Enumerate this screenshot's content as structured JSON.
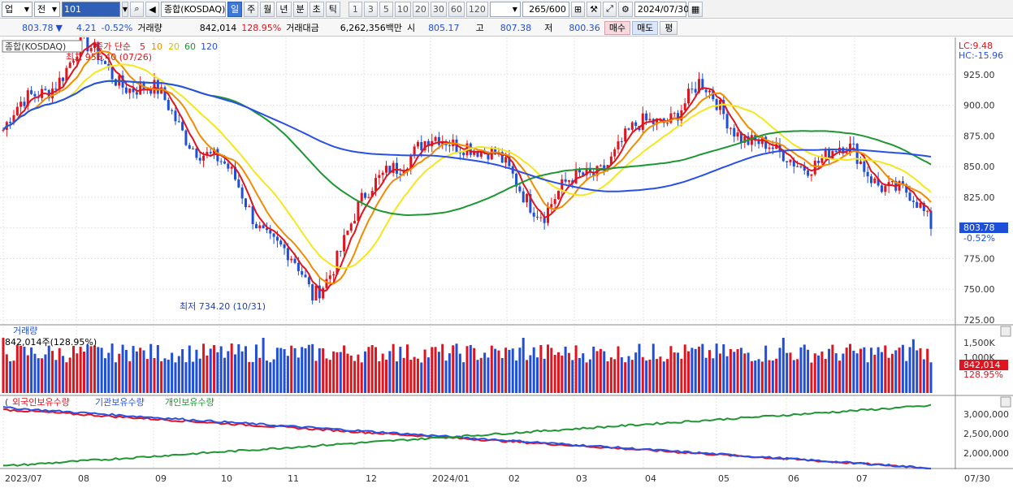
{
  "toolbar": {
    "market": "업",
    "prev": "전",
    "code": "101",
    "name": "종합(KOSDAQ)",
    "periods": [
      "일",
      "주",
      "월",
      "년",
      "분",
      "초",
      "틱"
    ],
    "active_period": "일",
    "intervals": [
      "1",
      "3",
      "5",
      "10",
      "20",
      "30",
      "60",
      "120"
    ],
    "count": "265/600",
    "date": "2024/07/30"
  },
  "quote": {
    "price": "803.78",
    "change": "4.21",
    "rate": "-0.52%",
    "volume_label": "거래량",
    "volume": "842,014",
    "volume_rate": "128.95%",
    "amount_label": "거래대금",
    "amount": "6,262,356백만",
    "open_label": "시",
    "open": "805.17",
    "high_label": "고",
    "high": "807.38",
    "low_label": "저",
    "low": "800.36",
    "sell_label": "매수",
    "buy_label": "매도",
    "eval_label": "평"
  },
  "main_chart": {
    "title": "종합(KOSDAQ)",
    "ma_label": "종가 단순",
    "ma_periods": [
      "5",
      "10",
      "20",
      "60",
      "120"
    ],
    "ma_colors": [
      "#e0141e",
      "#f08c00",
      "#f5e61e",
      "#1e9632",
      "#2850e6"
    ],
    "lc": "LC:9.48",
    "hc": "HC:-15.96",
    "high_note": "최고 956.40 (07/26)",
    "low_note": "최저 734.20 (10/31)",
    "y_ticks": [
      "925.00",
      "900.00",
      "875.00",
      "850.00",
      "825.00",
      "800.00",
      "775.00",
      "750.00",
      "725.00"
    ],
    "last_price": "803.78",
    "last_rate": "-0.52%"
  },
  "volume_chart": {
    "title": "거래량",
    "value": "842,014주(128.95%)",
    "y_ticks": [
      "1,500K",
      "1,000K"
    ],
    "last": "842,014",
    "last_rate": "128.95%"
  },
  "holding_chart": {
    "legend": [
      "외국인보유수량",
      "기관보유수량",
      "개인보유수량"
    ],
    "y_ticks": [
      "3,000,000",
      "2,500,000",
      "2,000,000"
    ]
  },
  "x_labels": [
    "2023/07",
    "08",
    "09",
    "10",
    "11",
    "12",
    "2024/01",
    "02",
    "03",
    "04",
    "05",
    "06",
    "07",
    "07/30"
  ],
  "chart_data": {
    "type": "line",
    "x": [
      "2023/07",
      "08",
      "09",
      "10",
      "11",
      "12",
      "2024/01",
      "02",
      "03",
      "04",
      "05",
      "06",
      "07"
    ],
    "close": [
      880,
      945,
      905,
      835,
      745,
      855,
      875,
      815,
      868,
      912,
      855,
      860,
      805
    ],
    "ylim": [
      725,
      950
    ]
  }
}
